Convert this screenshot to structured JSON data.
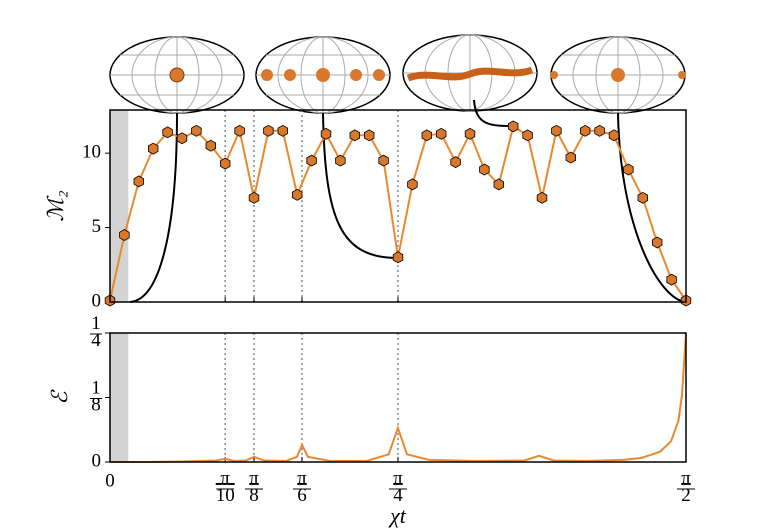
{
  "chart_data": [
    {
      "type": "line",
      "ylabel": "ℳ₂",
      "x": [
        0,
        0.03927,
        0.07854,
        0.11781,
        0.15708,
        0.19635,
        0.23562,
        0.27489,
        0.31416,
        0.35343,
        0.3927,
        0.43197,
        0.47124,
        0.51051,
        0.54978,
        0.58905,
        0.62832,
        0.66759,
        0.70686,
        0.74613,
        0.7854,
        0.82467,
        0.86394,
        0.90321,
        0.94248,
        0.98175,
        1.02102,
        1.06029,
        1.09956,
        1.13883,
        1.1781,
        1.21737,
        1.25664,
        1.29591,
        1.33518,
        1.37445,
        1.41372,
        1.45299,
        1.49226,
        1.53153,
        1.5708
      ],
      "series": [
        {
          "color": "#e8892e",
          "values": [
            0.1,
            4.5,
            8.1,
            10.3,
            11.4,
            11.0,
            11.5,
            10.5,
            9.3,
            11.5,
            7.0,
            11.5,
            11.5,
            7.2,
            9.5,
            11.3,
            9.5,
            11.2,
            11.2,
            9.5,
            3.0,
            7.9,
            11.2,
            11.3,
            9.4,
            11.3,
            8.9,
            7.9,
            11.8,
            11.2,
            7.0,
            11.5,
            9.7,
            11.5,
            11.5,
            11.2,
            8.9,
            7.0,
            4.0,
            1.5,
            0.1
          ]
        }
      ],
      "xlim": [
        0,
        1.5708
      ],
      "ylim": [
        0,
        12.9
      ],
      "yticks": [
        0,
        5,
        10
      ],
      "shaded_span": [
        0,
        0.05
      ]
    },
    {
      "type": "line",
      "ylabel": "ℰ",
      "xlabel": "χt",
      "x": [
        0,
        0.1,
        0.2,
        0.29,
        0.314,
        0.34,
        0.37,
        0.393,
        0.42,
        0.48,
        0.51,
        0.524,
        0.54,
        0.6,
        0.7,
        0.76,
        0.785,
        0.81,
        0.87,
        1.0,
        1.13,
        1.17,
        1.21,
        1.3,
        1.4,
        1.45,
        1.5,
        1.53,
        1.55,
        1.56,
        1.5708
      ],
      "series": [
        {
          "color": "#e8892e",
          "values": [
            0,
            0,
            0.001,
            0.003,
            0.006,
            0.002,
            0.003,
            0.01,
            0.003,
            0.002,
            0.01,
            0.033,
            0.01,
            0.002,
            0.002,
            0.015,
            0.066,
            0.015,
            0.004,
            0.002,
            0.003,
            0.012,
            0.003,
            0.002,
            0.004,
            0.008,
            0.02,
            0.04,
            0.08,
            0.13,
            0.25
          ]
        }
      ],
      "xlim": [
        0,
        1.5708
      ],
      "xticks": [
        0,
        {
          "value": 0.31416,
          "label": "π/10"
        },
        {
          "value": 0.3927,
          "label": "π/8"
        },
        {
          "value": 0.5236,
          "label": "π/6"
        },
        {
          "value": 0.7854,
          "label": "π/4"
        },
        {
          "value": 1.5708,
          "label": "π/2"
        }
      ],
      "ylim": [
        0,
        0.25
      ],
      "yticks": [
        0,
        {
          "value": 0.125,
          "label": "1/8"
        },
        {
          "value": 0.25,
          "label": "1/4"
        }
      ]
    }
  ]
}
